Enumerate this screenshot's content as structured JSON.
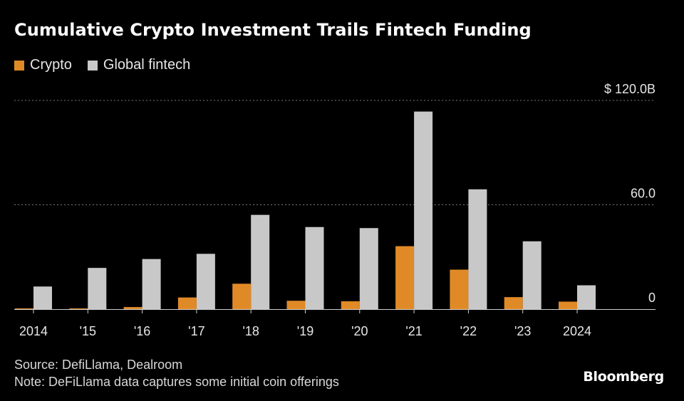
{
  "title": "Cumulative Crypto Investment Trails Fintech Funding",
  "colors": {
    "crypto": "#e08a27",
    "fintech": "#c8c8c8",
    "grid": "#777777",
    "text": "#e6e6e6"
  },
  "source_line": "Source: DefiLlama, Dealroom",
  "note_line": "Note: DeFiLlama data captures some initial coin offerings",
  "brand": "Bloomberg",
  "chart_data": {
    "type": "bar",
    "title": "Cumulative Crypto Investment Trails Fintech Funding",
    "categories": [
      "2014",
      "'15",
      "'16",
      "'17",
      "'18",
      "'19",
      "'20",
      "'21",
      "'22",
      "'23",
      "2024"
    ],
    "series": [
      {
        "name": "Crypto",
        "color": "#e08a27",
        "values": [
          0.2,
          0.4,
          1.2,
          6.7,
          14.6,
          4.8,
          4.5,
          36.2,
          22.7,
          6.9,
          4.3
        ]
      },
      {
        "name": "Global fintech",
        "color": "#c8c8c8",
        "values": [
          13,
          23.7,
          28.8,
          31.8,
          54.2,
          47.2,
          46.6,
          113.6,
          68.9,
          39,
          13.7
        ]
      }
    ],
    "yticks": [
      {
        "value": 0,
        "label": "0"
      },
      {
        "value": 60,
        "label": "60.0"
      },
      {
        "value": 120,
        "label": "$ 120.0B"
      }
    ],
    "ylim": [
      0,
      120
    ],
    "grid": true,
    "legend": "top-left",
    "xlabel": "",
    "ylabel": ""
  }
}
